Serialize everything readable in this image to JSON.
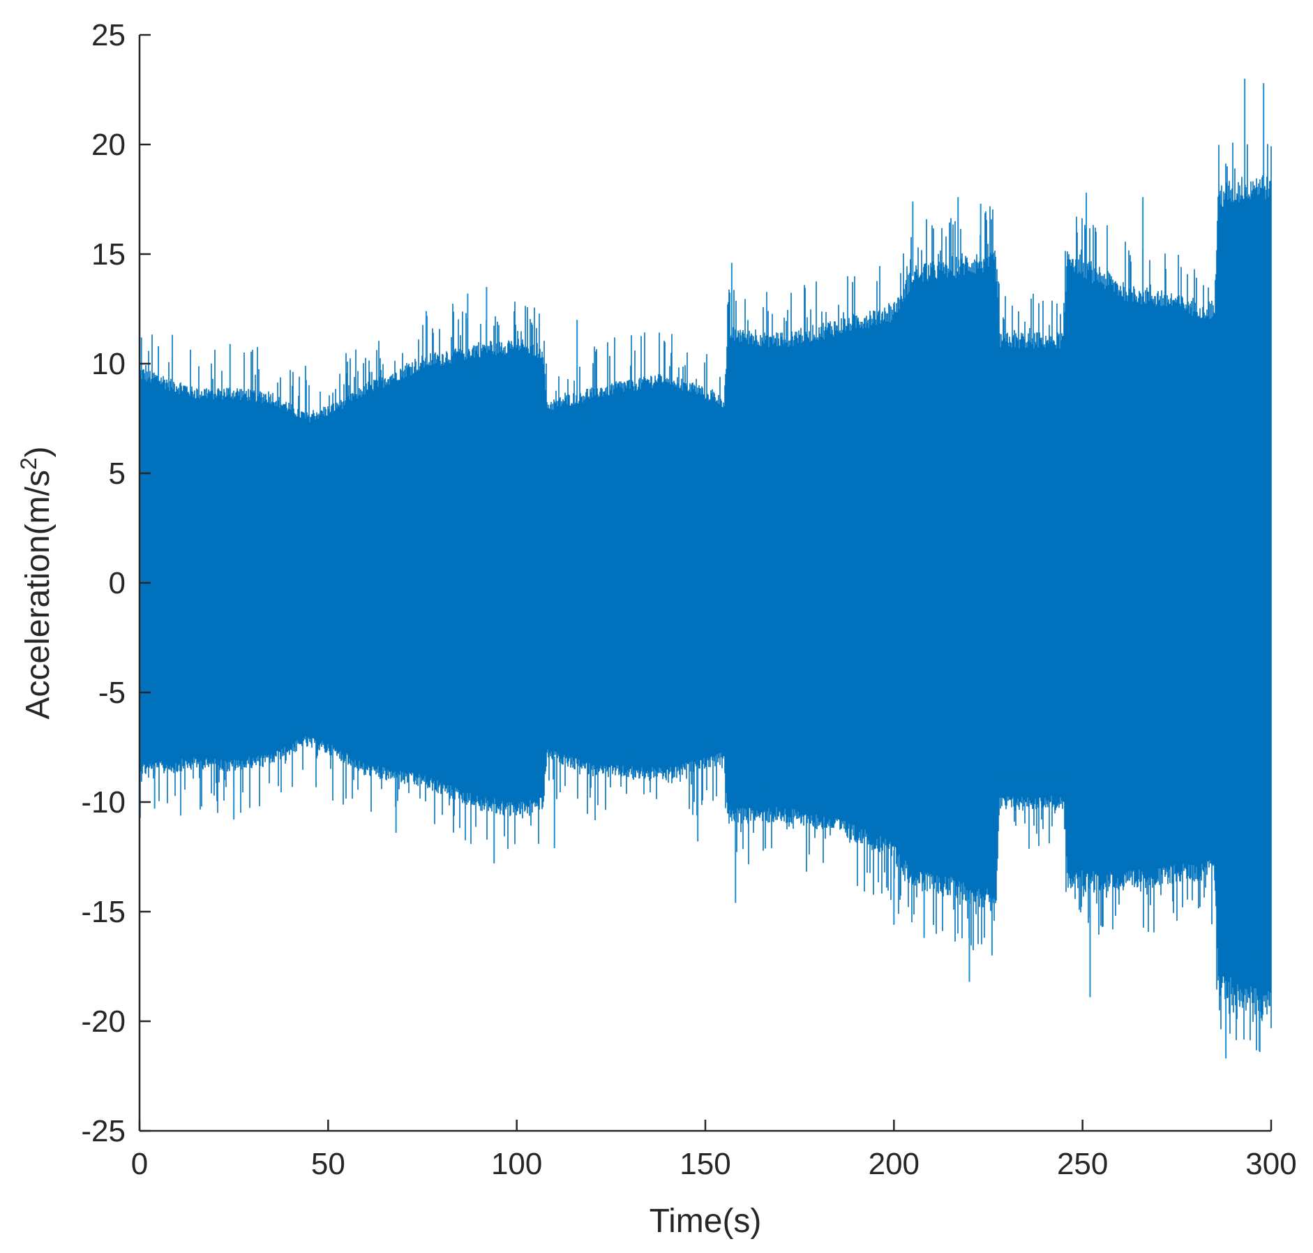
{
  "chart_data": {
    "type": "line",
    "xlabel": "Time(s)",
    "ylabel_main": "Acceleration(m/s",
    "ylabel_sup": "2",
    "ylabel_close": ")",
    "xlim": [
      0,
      300
    ],
    "ylim": [
      -25,
      25
    ],
    "x_ticks": [
      0,
      50,
      100,
      150,
      200,
      250,
      300
    ],
    "x_tick_labels": [
      "0",
      "50",
      "100",
      "150",
      "200",
      "250",
      "300"
    ],
    "y_ticks": [
      -25,
      -20,
      -15,
      -10,
      -5,
      0,
      5,
      10,
      15,
      20,
      25
    ],
    "y_tick_labels": [
      "-25",
      "-20",
      "-15",
      "-10",
      "-5",
      "0",
      "5",
      "10",
      "15",
      "20",
      "25"
    ],
    "grid": false,
    "legend": "none",
    "color": "#0072BD",
    "peak_color": "#1A8FD6",
    "series": [
      {
        "envelope": {
          "time": [
            0,
            5,
            15,
            25,
            35,
            44,
            50,
            60,
            75,
            90,
            100,
            107,
            108,
            120,
            140,
            154,
            155,
            156,
            170,
            185,
            200,
            205,
            215,
            227,
            228,
            240,
            245,
            246,
            260,
            285,
            286,
            295,
            300
          ],
          "upper": [
            9.5,
            9.2,
            8.6,
            8.6,
            8.4,
            7.5,
            7.8,
            8.8,
            10.0,
            10.6,
            10.8,
            10.5,
            8.0,
            8.6,
            9.3,
            8.3,
            8.2,
            11.3,
            11.0,
            11.6,
            12.3,
            14.0,
            14.3,
            14.6,
            11.0,
            11.0,
            11.0,
            14.8,
            13.3,
            12.3,
            17.5,
            18.0,
            18.0
          ],
          "lower": [
            -8.4,
            -8.4,
            -8.2,
            -8.3,
            -8.0,
            -7.2,
            -7.5,
            -8.5,
            -9.0,
            -10.0,
            -10.3,
            -10.0,
            -7.8,
            -8.5,
            -8.7,
            -8.0,
            -7.9,
            -10.6,
            -10.5,
            -11.0,
            -12.2,
            -13.5,
            -13.8,
            -14.5,
            -10.0,
            -10.0,
            -10.0,
            -13.5,
            -13.6,
            -13.0,
            -18.2,
            -19.0,
            -19.0
          ]
        },
        "peaks": [
          [
            0.5,
            11.2
          ],
          [
            5,
            10.8
          ],
          [
            24,
            10.9
          ],
          [
            44,
            9.9
          ],
          [
            76,
            12.4
          ],
          [
            87,
            13.2
          ],
          [
            92,
            13.5
          ],
          [
            116,
            12.0
          ],
          [
            157,
            14.6
          ],
          [
            205,
            17.4
          ],
          [
            217,
            17.6
          ],
          [
            223,
            17.3
          ],
          [
            251,
            17.8
          ],
          [
            266,
            17.6
          ],
          [
            293,
            23.0
          ],
          [
            298,
            22.8
          ],
          [
            4,
            -10.3
          ],
          [
            25,
            -10.8
          ],
          [
            68,
            -11.4
          ],
          [
            94,
            -12.8
          ],
          [
            110,
            -12.1
          ],
          [
            148,
            -11.8
          ],
          [
            158,
            -14.6
          ],
          [
            200,
            -15.6
          ],
          [
            208,
            -16.2
          ],
          [
            220,
            -18.2
          ],
          [
            226,
            -17.0
          ],
          [
            252,
            -18.9
          ],
          [
            288,
            -21.7
          ],
          [
            297,
            -21.4
          ]
        ]
      }
    ]
  }
}
